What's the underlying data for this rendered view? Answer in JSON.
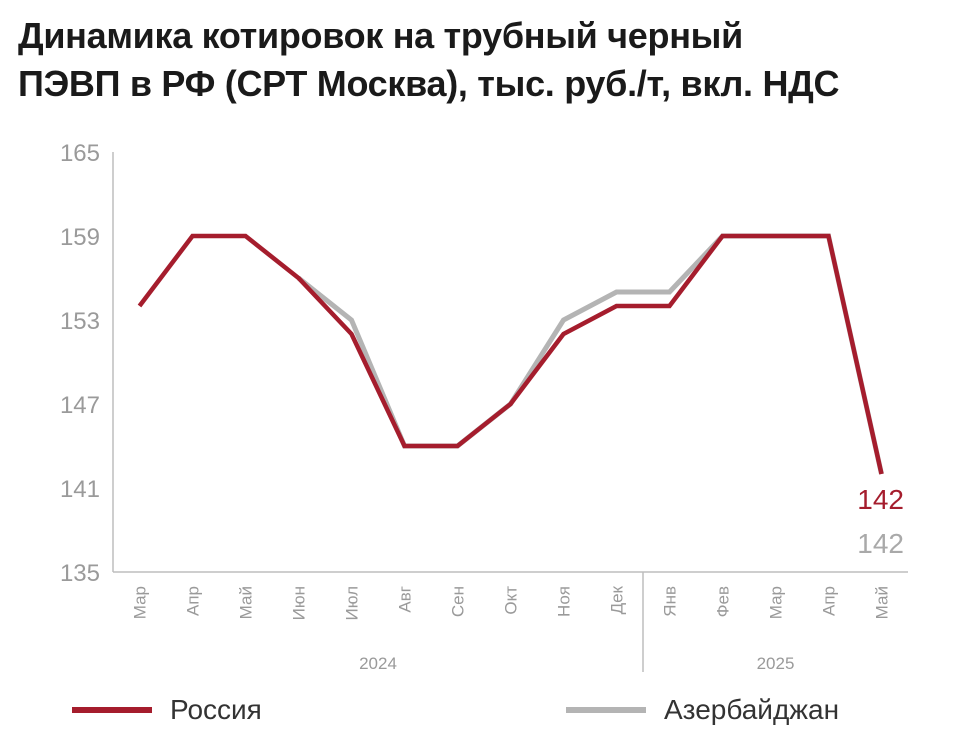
{
  "title_line1": "Динамика котировок на трубный черный",
  "title_line2": "ПЭВП в РФ (СРТ Москва), тыс. руб./т, вкл. НДС",
  "colors": {
    "russia": "#a51d2d",
    "azerbaijan": "#b4b4b4",
    "axis": "#bdbdbd",
    "tick_text": "#9a9a9a"
  },
  "chart_data": {
    "type": "line",
    "categories": [
      "Мар",
      "Апр",
      "Май",
      "Июн",
      "Июл",
      "Авг",
      "Сен",
      "Окт",
      "Ноя",
      "Дек",
      "Янв",
      "Фев",
      "Мар",
      "Апр",
      "Май"
    ],
    "year_groups": [
      {
        "label": "2024",
        "from": 0,
        "to": 9
      },
      {
        "label": "2025",
        "from": 10,
        "to": 14
      }
    ],
    "ylim": [
      135,
      165
    ],
    "yticks": [
      135,
      141,
      147,
      153,
      159,
      165
    ],
    "grid": false,
    "series": [
      {
        "name": "Россия",
        "color": "#a51d2d",
        "values": [
          154,
          159,
          159,
          156,
          152,
          144,
          144,
          147,
          152,
          154,
          154,
          159,
          159,
          159,
          142
        ],
        "end_label": "142"
      },
      {
        "name": "Азербайджан",
        "color": "#b4b4b4",
        "values": [
          null,
          null,
          null,
          156,
          153,
          144,
          144,
          147,
          153,
          155,
          155,
          159,
          159,
          159,
          142
        ],
        "end_label": "142"
      }
    ],
    "legend_position": "bottom"
  }
}
